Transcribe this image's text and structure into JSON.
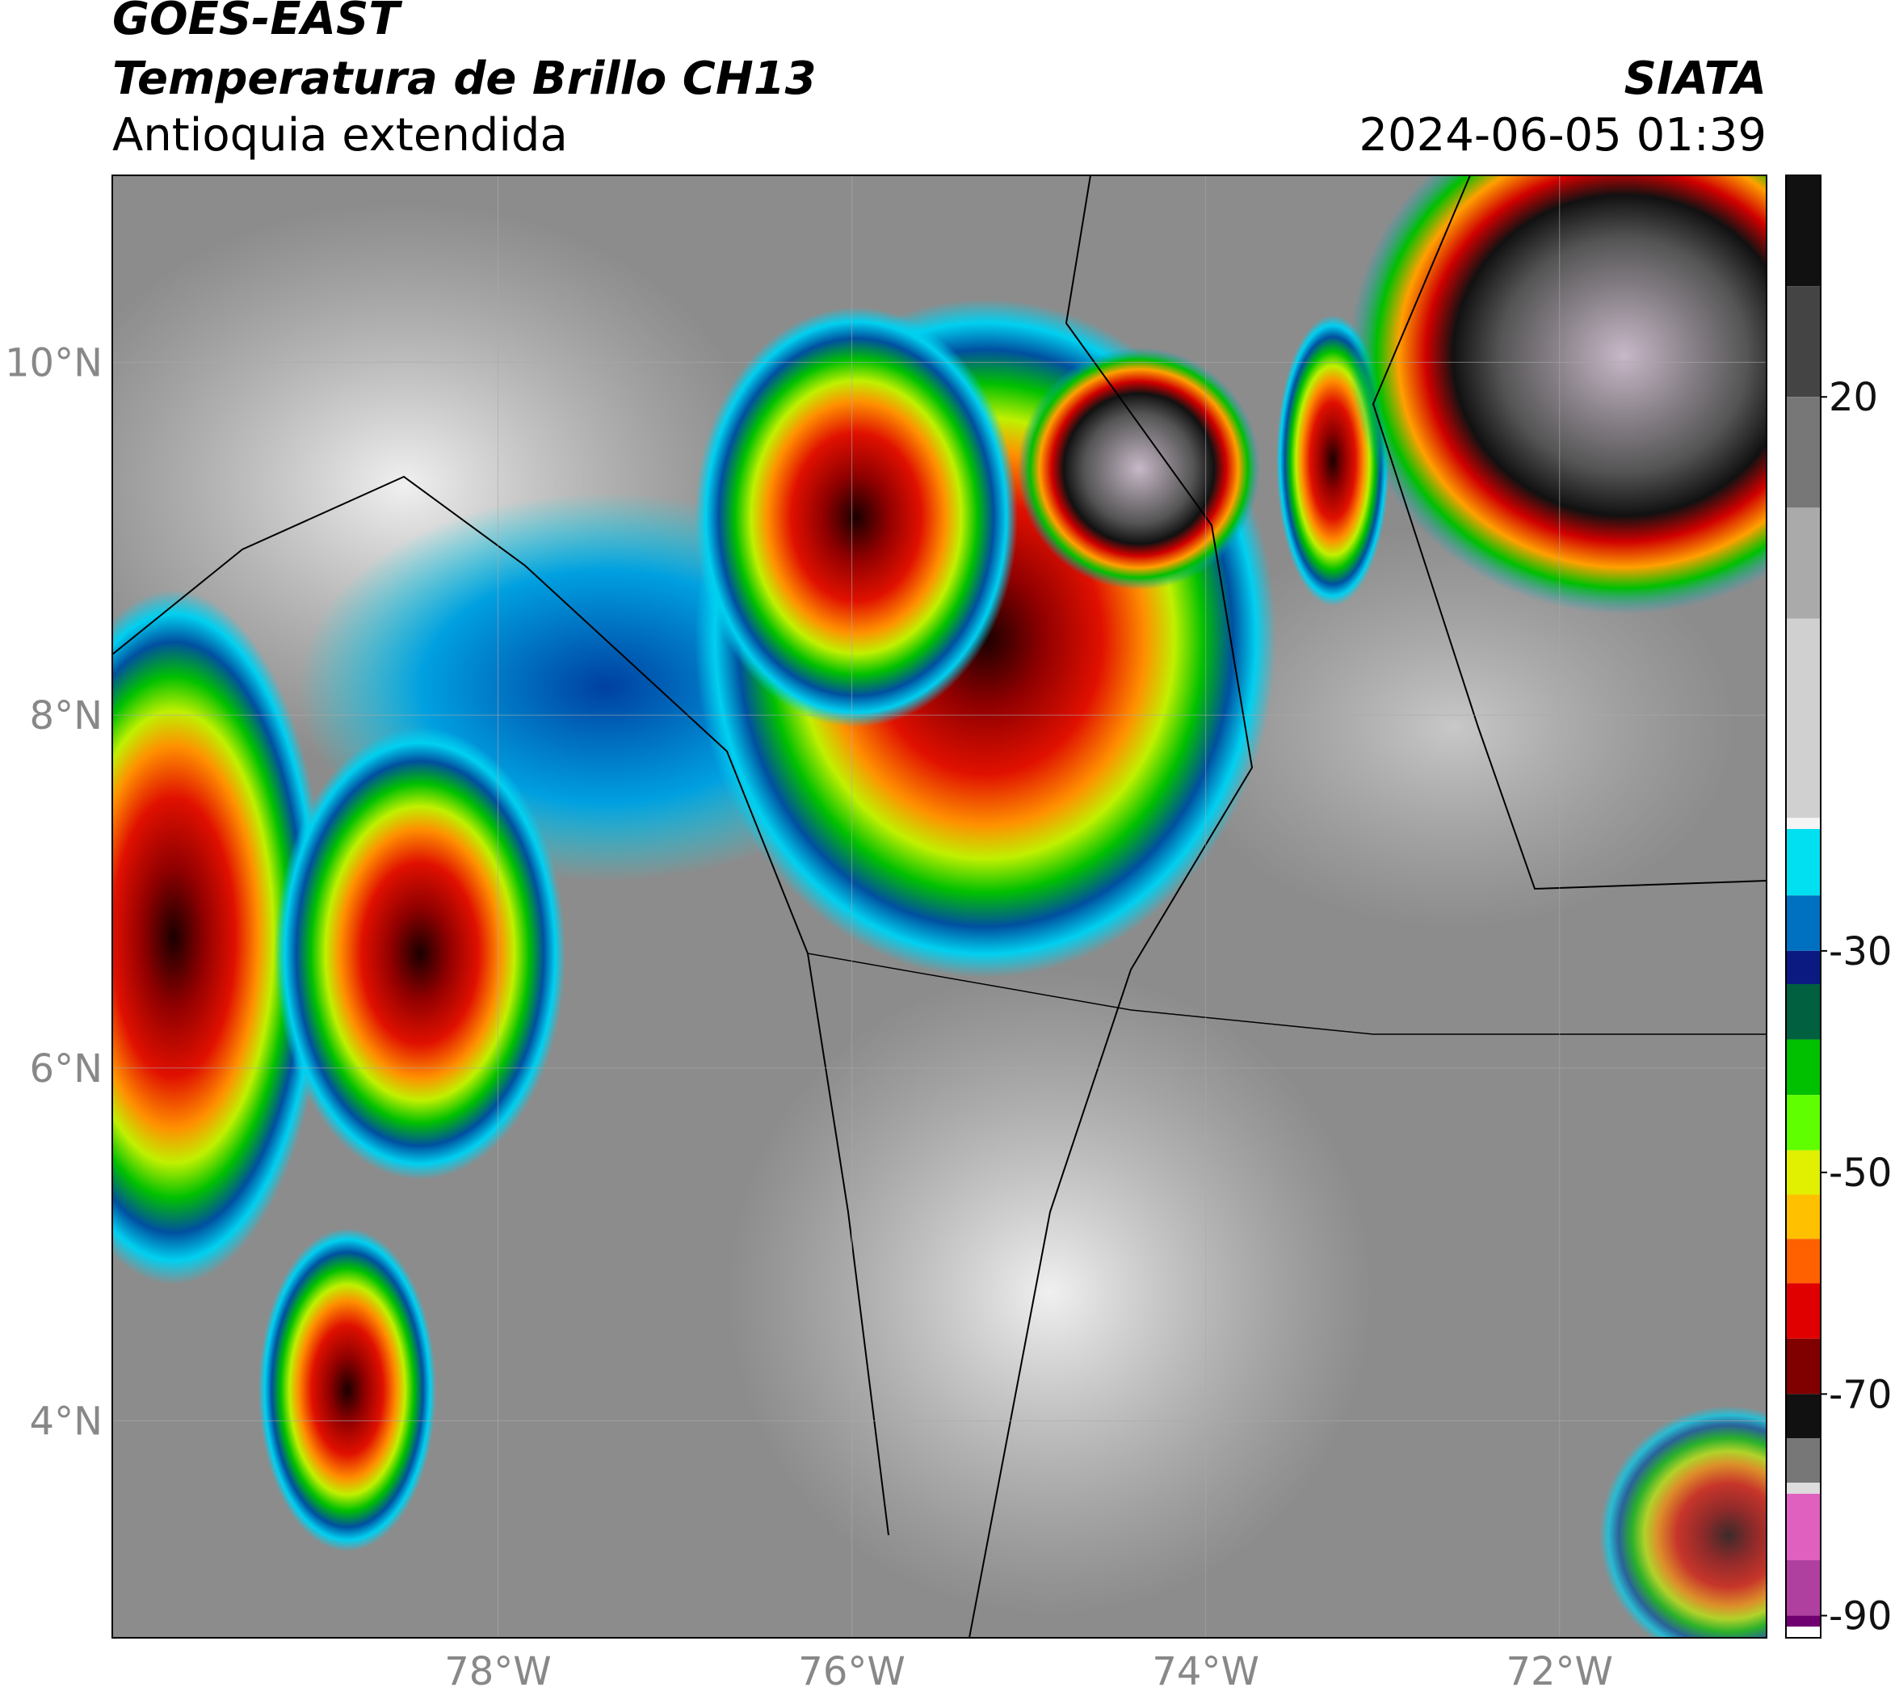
{
  "header": {
    "title": "GOES-EAST",
    "subtitle": "Temperatura de Brillo CH13",
    "region": "Antioquia extendida",
    "source": "SIATA",
    "datetime": "2024-06-05 01:39"
  },
  "map": {
    "xlim": [
      -80.18,
      -70.83
    ],
    "ylim": [
      2.77,
      11.06
    ],
    "xticks": [
      {
        "value": -78,
        "label": "78°W"
      },
      {
        "value": -76,
        "label": "76°W"
      },
      {
        "value": -74,
        "label": "74°W"
      },
      {
        "value": -72,
        "label": "72°W"
      }
    ],
    "yticks": [
      {
        "value": 10,
        "label": "10°N"
      },
      {
        "value": 8,
        "label": "8°N"
      },
      {
        "value": 6,
        "label": "6°N"
      },
      {
        "value": 4,
        "label": "4°N"
      }
    ],
    "grid": true
  },
  "colorbar": {
    "lim": [
      -92,
      40
    ],
    "ticks": [
      20,
      -30,
      -50,
      -70,
      -90
    ],
    "stops": [
      {
        "value": 40,
        "color": "#111111"
      },
      {
        "value": 30,
        "color": "#444444"
      },
      {
        "value": 20,
        "color": "#777777"
      },
      {
        "value": 10,
        "color": "#aaaaaa"
      },
      {
        "value": 0,
        "color": "#d0d0d0"
      },
      {
        "value": -18,
        "color": "#f5f5f5"
      },
      {
        "value": -19,
        "color": "#00e0f0"
      },
      {
        "value": -25,
        "color": "#0070c0"
      },
      {
        "value": -30,
        "color": "#0a1a80"
      },
      {
        "value": -33,
        "color": "#006040"
      },
      {
        "value": -38,
        "color": "#00c000"
      },
      {
        "value": -43,
        "color": "#60ff00"
      },
      {
        "value": -48,
        "color": "#e0f000"
      },
      {
        "value": -52,
        "color": "#ffc000"
      },
      {
        "value": -56,
        "color": "#ff6000"
      },
      {
        "value": -60,
        "color": "#e00000"
      },
      {
        "value": -65,
        "color": "#800000"
      },
      {
        "value": -70,
        "color": "#111111"
      },
      {
        "value": -74,
        "color": "#777777"
      },
      {
        "value": -78,
        "color": "#dddddd"
      },
      {
        "value": -79,
        "color": "#e060c0"
      },
      {
        "value": -85,
        "color": "#b040a0"
      },
      {
        "value": -90,
        "color": "#700070"
      },
      {
        "value": -91,
        "color": "#ffffff"
      }
    ]
  }
}
